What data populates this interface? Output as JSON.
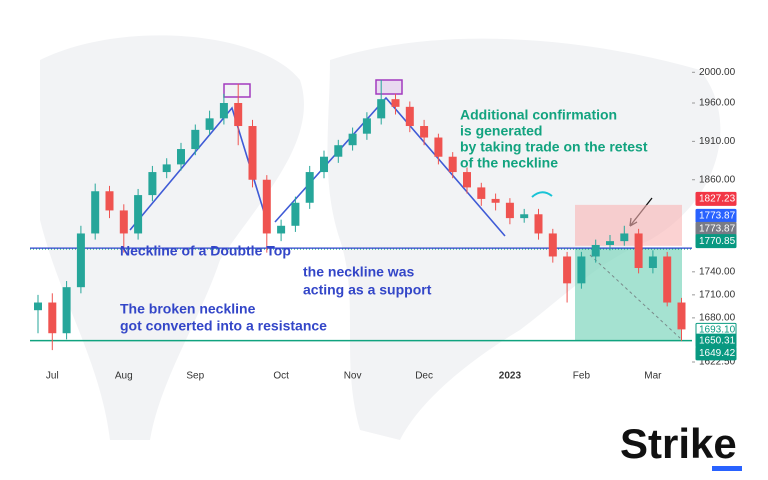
{
  "chart_data": {
    "type": "candlestick",
    "categories": [
      null,
      "Jul",
      null,
      null,
      null,
      null,
      "Aug",
      null,
      null,
      null,
      null,
      "Sep",
      null,
      null,
      null,
      null,
      null,
      "Oct",
      null,
      null,
      null,
      null,
      "Nov",
      null,
      null,
      null,
      null,
      "Dec",
      null,
      null,
      null,
      null,
      null,
      "2023",
      null,
      null,
      null,
      null,
      "Feb",
      null,
      null,
      null,
      null,
      "Mar",
      null,
      null
    ],
    "open": [
      1690,
      1700,
      1660,
      1720,
      1790,
      1845,
      1820,
      1790,
      1840,
      1870,
      1880,
      1900,
      1925,
      1940,
      1960,
      1930,
      1860,
      1790,
      1800,
      1830,
      1870,
      1890,
      1905,
      1920,
      1940,
      1965,
      1955,
      1930,
      1915,
      1890,
      1870,
      1850,
      1835,
      1830,
      1810,
      1815,
      1790,
      1760,
      1725,
      1760,
      1775,
      1780,
      1790,
      1745,
      1760,
      1700
    ],
    "high": [
      1710,
      1712,
      1728,
      1800,
      1855,
      1852,
      1828,
      1848,
      1878,
      1888,
      1908,
      1932,
      1950,
      1972,
      1985,
      1938,
      1866,
      1808,
      1838,
      1878,
      1898,
      1912,
      1928,
      1948,
      1990,
      1972,
      1962,
      1938,
      1920,
      1896,
      1876,
      1856,
      1842,
      1836,
      1822,
      1822,
      1796,
      1766,
      1766,
      1782,
      1788,
      1800,
      1796,
      1768,
      1766,
      1706
    ],
    "low": [
      1660,
      1638,
      1652,
      1712,
      1782,
      1810,
      1765,
      1782,
      1832,
      1862,
      1872,
      1892,
      1918,
      1932,
      1905,
      1850,
      1765,
      1780,
      1792,
      1822,
      1862,
      1882,
      1898,
      1912,
      1932,
      1945,
      1922,
      1905,
      1880,
      1862,
      1842,
      1826,
      1820,
      1802,
      1804,
      1782,
      1752,
      1700,
      1718,
      1752,
      1768,
      1774,
      1738,
      1738,
      1695,
      1650
    ],
    "close": [
      1700,
      1660,
      1720,
      1790,
      1845,
      1820,
      1790,
      1840,
      1870,
      1880,
      1900,
      1925,
      1940,
      1960,
      1930,
      1860,
      1790,
      1800,
      1830,
      1870,
      1890,
      1905,
      1920,
      1940,
      1965,
      1955,
      1930,
      1915,
      1890,
      1870,
      1850,
      1835,
      1830,
      1810,
      1815,
      1790,
      1760,
      1725,
      1760,
      1775,
      1780,
      1790,
      1745,
      1760,
      1700,
      1665
    ],
    "up_color": "#26a69a",
    "down_color": "#ef5350",
    "ylim": [
      1622.5,
      2003
    ],
    "yticks": [
      {
        "value": 2000,
        "label": "2000.00"
      },
      {
        "value": 1960,
        "label": "1960.00"
      },
      {
        "value": 1910,
        "label": "1910.00"
      },
      {
        "value": 1860,
        "label": "1860.00"
      },
      {
        "value": 1740,
        "label": "1740.00"
      },
      {
        "value": 1710,
        "label": "1710.00"
      },
      {
        "value": 1680,
        "label": "1680.00"
      },
      {
        "value": 1622.5,
        "label": "1622.50"
      }
    ],
    "price_tags": [
      1827.23,
      1773.87,
      1773.87,
      1770.85,
      {
        "value": 1693.1,
        "label": "1693.10"
      },
      1650.31,
      1649.42
    ],
    "price_tag_colors": [
      "#f23645",
      "#2962ff",
      "#787b86",
      "#089981",
      "#ffffff",
      "#089981",
      "#089981"
    ],
    "annotations": {
      "neckline": "Neckline of a Doubtle Top",
      "support": [
        "the neckline was",
        "acting as a support"
      ],
      "resistance": [
        "The broken neckline",
        "got converted into a resistance"
      ],
      "confirmation": [
        "Additional confirmation",
        "is generated",
        "by taking trade on the retest",
        "of the neckline"
      ]
    }
  },
  "logo": "Strike"
}
